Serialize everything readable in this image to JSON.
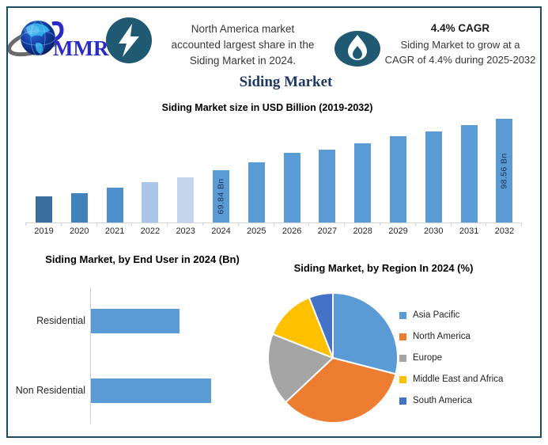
{
  "brand": {
    "logo_text": "MMR"
  },
  "header": {
    "left_callout": {
      "icon": "lightning",
      "lines": [
        "North America market",
        "accounted largest share in the",
        "Siding Market in 2024."
      ]
    },
    "right_callout": {
      "icon": "flame",
      "heading": "4.4% CAGR",
      "lines": [
        "Siding Market to grow at a",
        "CAGR of 4.4% during 2025-2032"
      ]
    }
  },
  "page_title": "Siding Market",
  "chart_data": [
    {
      "id": "market_size",
      "type": "bar",
      "title": "Siding Market size in USD Billion (2019-2032)",
      "unit": "USD Billion",
      "categories": [
        "2019",
        "2020",
        "2021",
        "2022",
        "2023",
        "2024",
        "2025",
        "2026",
        "2027",
        "2028",
        "2029",
        "2030",
        "2031",
        "2032"
      ],
      "values": [
        55.3,
        57.0,
        60.1,
        63.2,
        65.9,
        69.84,
        74.3,
        79.8,
        81.3,
        84.9,
        88.8,
        91.5,
        95.0,
        98.56
      ],
      "data_labels": [
        {
          "category": "2024",
          "text": "69.84 Bn"
        },
        {
          "category": "2032",
          "text": "98.56 Bn"
        }
      ],
      "bar_colors": [
        "#3A6E9E",
        "#4182BD",
        "#4E8FCC",
        "#A9C5E8",
        "#C5D5ED",
        "#5B9BD5",
        "#5B9BD5",
        "#5B9BD5",
        "#5B9BD5",
        "#5B9BD5",
        "#5B9BD5",
        "#5B9BD5",
        "#5B9BD5",
        "#5B9BD5"
      ],
      "ylim": [
        40.7,
        100.9
      ],
      "grid": false,
      "legend": false
    },
    {
      "id": "end_user",
      "type": "bar",
      "orientation": "horizontal",
      "title": "Siding Market, by End User in 2024 (Bn)",
      "categories": [
        "Residential",
        "Non Residential"
      ],
      "values": [
        29.7,
        40.2
      ],
      "bar_color": "#5B9BD5",
      "xlim": [
        0,
        40.2
      ],
      "grid": false,
      "legend": false
    },
    {
      "id": "region",
      "type": "pie",
      "title": "Siding Market, by Region In 2024 (%)",
      "labels": [
        "Asia Pacific",
        "North America",
        "Europe",
        "Middle East and Africa",
        "South America"
      ],
      "values": [
        29,
        34,
        18,
        13,
        6
      ],
      "colors": [
        "#5B9BD5",
        "#ED7D31",
        "#A5A5A5",
        "#FFC000",
        "#4472C4"
      ],
      "legend_position": "right"
    }
  ],
  "colors": {
    "frame_border": "#1E4B5F",
    "badge_background": "#1F5972",
    "title_navy": "#1F3864",
    "logo_blue": "#2A2AC8"
  }
}
